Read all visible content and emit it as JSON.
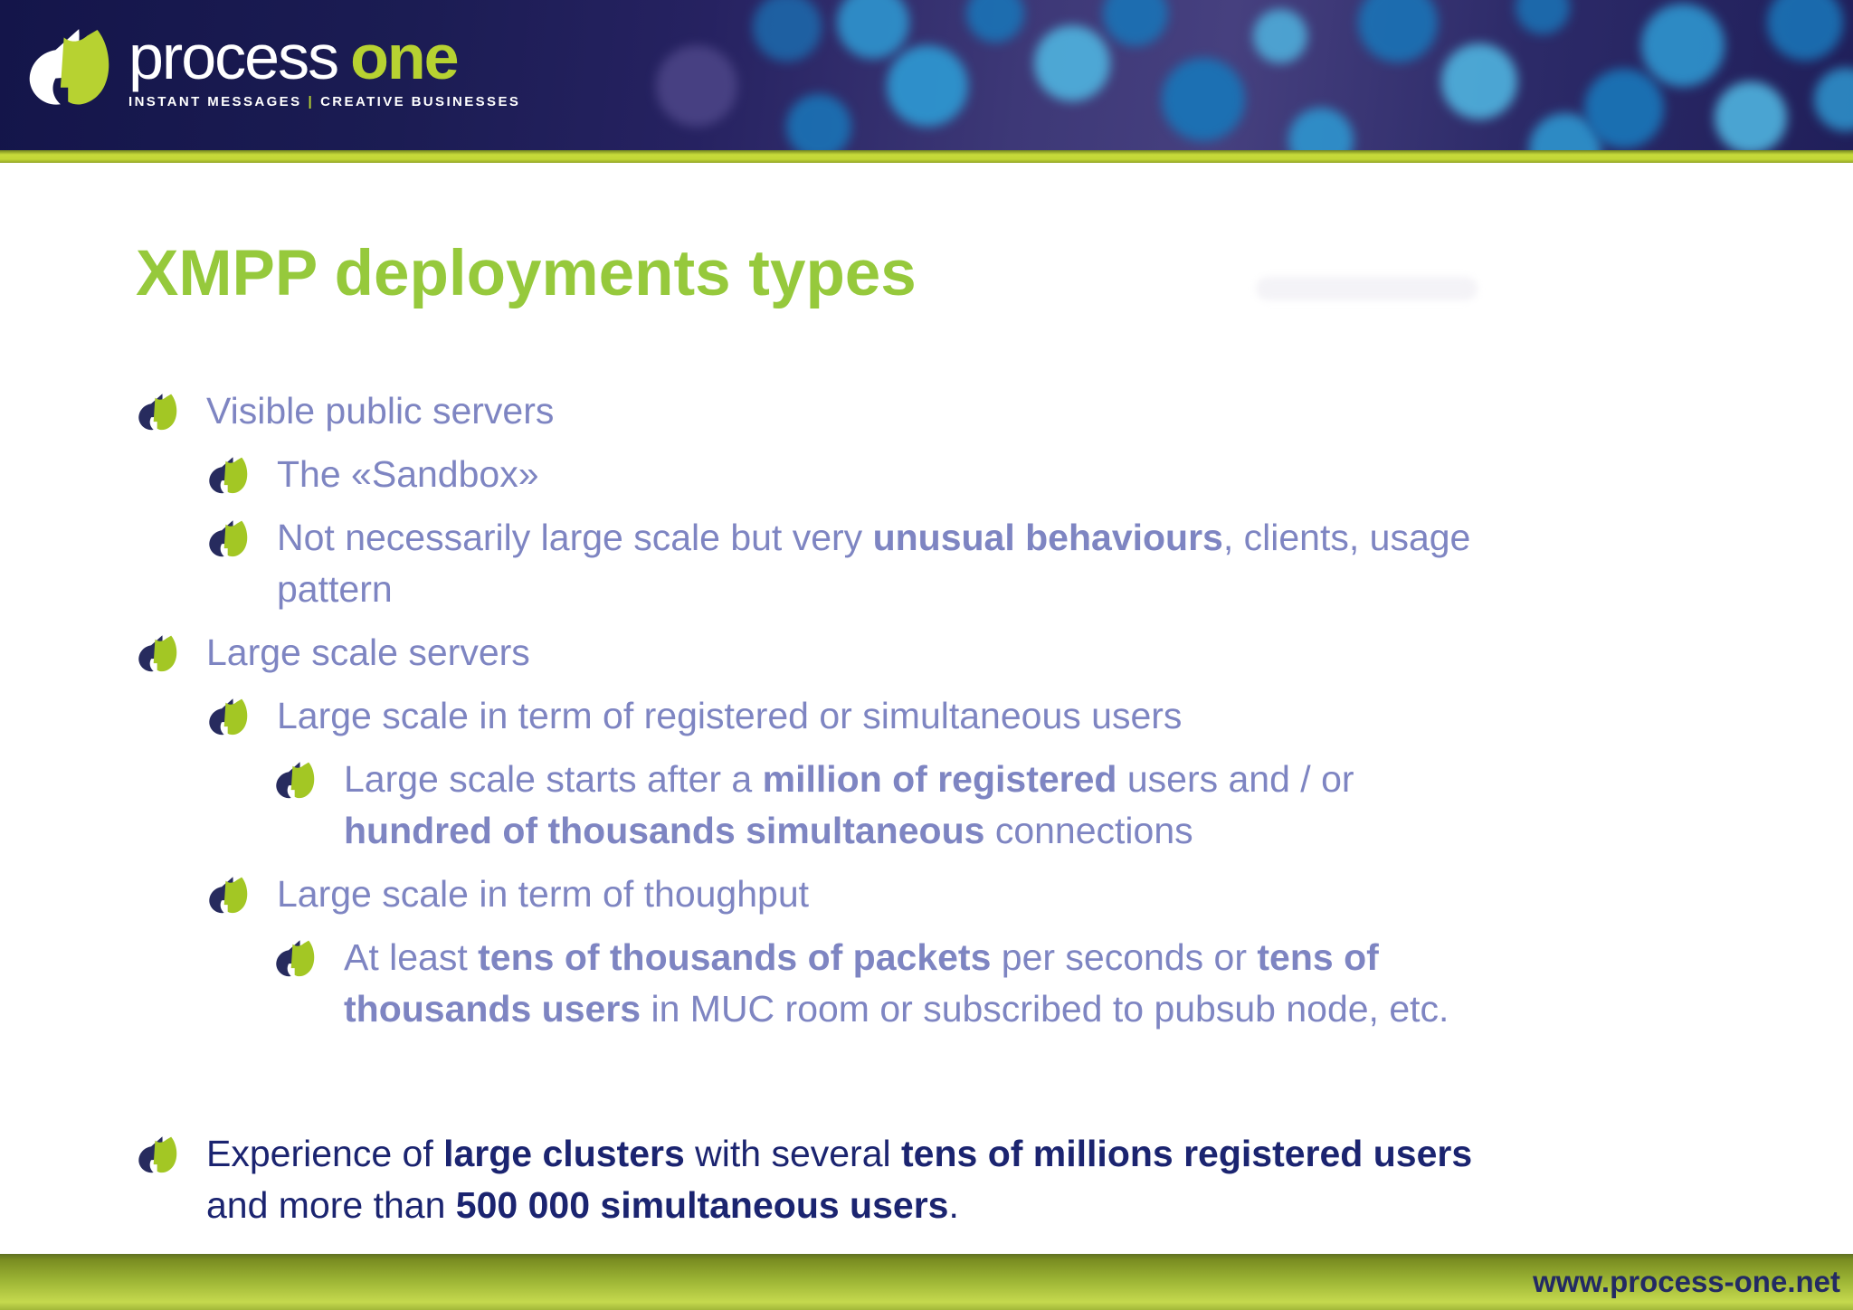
{
  "header": {
    "brand_first": "process",
    "brand_second": "one",
    "tagline_left": "INSTANT MESSAGES",
    "tagline_sep": "|",
    "tagline_right": "CREATIVE BUSINESSES"
  },
  "slide": {
    "title": "XMPP deployments types",
    "bullets": [
      {
        "level": 1,
        "theme": "body",
        "segments": [
          {
            "t": "Visible public servers"
          }
        ]
      },
      {
        "level": 2,
        "theme": "body",
        "segments": [
          {
            "t": "The «Sandbox»"
          }
        ]
      },
      {
        "level": 2,
        "theme": "body",
        "segments": [
          {
            "t": "Not necessarily large scale but very "
          },
          {
            "t": "unusual behaviours",
            "b": true
          },
          {
            "t": ", clients, usage"
          },
          {
            "br": true
          },
          {
            "t": "pattern"
          }
        ]
      },
      {
        "level": 1,
        "theme": "body",
        "segments": [
          {
            "t": "Large scale servers"
          }
        ]
      },
      {
        "level": 2,
        "theme": "body",
        "segments": [
          {
            "t": "Large scale in term of registered or simultaneous users"
          }
        ]
      },
      {
        "level": 3,
        "theme": "body",
        "segments": [
          {
            "t": "Large scale starts after a "
          },
          {
            "t": "million of registered",
            "b": true
          },
          {
            "t": " users and / or"
          },
          {
            "br": true
          },
          {
            "t": "hundred of thousands simultaneous",
            "b": true
          },
          {
            "t": " connections"
          }
        ]
      },
      {
        "level": 2,
        "theme": "body",
        "segments": [
          {
            "t": "Large scale in term of thoughput"
          }
        ]
      },
      {
        "level": 3,
        "theme": "body",
        "segments": [
          {
            "t": "At least "
          },
          {
            "t": "tens of thousands of packets",
            "b": true
          },
          {
            "t": " per seconds or "
          },
          {
            "t": "tens of",
            "b": true
          },
          {
            "br": true
          },
          {
            "t": "thousands users",
            "b": true
          },
          {
            "t": " in MUC room or subscribed to pubsub node, etc."
          }
        ]
      },
      {
        "level": 1,
        "theme": "dark",
        "gap_before": true,
        "segments": [
          {
            "t": "Experience of "
          },
          {
            "t": "large clusters",
            "b": true
          },
          {
            "t": " with several "
          },
          {
            "t": "tens of millions registered users",
            "b": true
          },
          {
            "br": true
          },
          {
            "t": "and more than "
          },
          {
            "t": "500 000 simultaneous users",
            "b": true
          },
          {
            "t": "."
          }
        ]
      }
    ]
  },
  "footer": {
    "url": "www.process-one.net"
  },
  "colors": {
    "header_navy": "#1c1d53",
    "bokeh_blue": "#1a73b6",
    "bokeh_blue_light": "#2e95cf",
    "bokeh_cyan": "#4fb3df",
    "bokeh_purple": "#4b4486",
    "brand_green": "#b7d231",
    "bullet_green": "#a3c724",
    "bullet_navy": "#272b5e",
    "title_green": "#96c93c",
    "body_text": "#7e85c2",
    "dark_text": "#1b2470",
    "divider_green": "#c6da3a",
    "footer_text": "#232a63"
  }
}
